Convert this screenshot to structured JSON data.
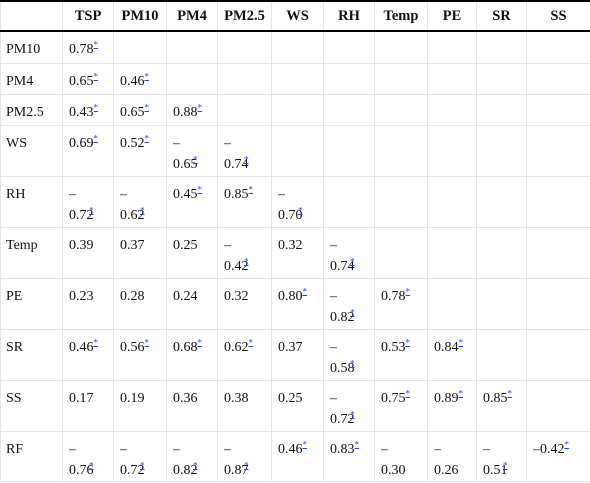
{
  "columns": [
    "",
    "TSP",
    "PM10",
    "PM4",
    "PM2.5",
    "WS",
    "RH",
    "Temp",
    "PE",
    "SR",
    "SS"
  ],
  "rows": [
    {
      "label": "PM10",
      "cells": [
        {
          "v": "0.78",
          "s": true
        },
        null,
        null,
        null,
        null,
        null,
        null,
        null,
        null,
        null
      ]
    },
    {
      "label": "PM4",
      "cells": [
        {
          "v": "0.65",
          "s": true
        },
        {
          "v": "0.46",
          "s": true
        },
        null,
        null,
        null,
        null,
        null,
        null,
        null,
        null
      ]
    },
    {
      "label": "PM2.5",
      "cells": [
        {
          "v": "0.43",
          "s": true
        },
        {
          "v": "0.65",
          "s": true
        },
        {
          "v": "0.88",
          "s": true
        },
        null,
        null,
        null,
        null,
        null,
        null,
        null
      ]
    },
    {
      "label": "WS",
      "cells": [
        {
          "v": "0.69",
          "s": true
        },
        {
          "v": "0.52",
          "s": true
        },
        {
          "v": "–0.65",
          "s": true
        },
        {
          "v": "–0.74",
          "s": true
        },
        null,
        null,
        null,
        null,
        null,
        null
      ]
    },
    {
      "label": "RH",
      "cells": [
        {
          "v": "–0.72",
          "s": true
        },
        {
          "v": "–0.62",
          "s": true
        },
        {
          "v": "0.45",
          "s": true
        },
        {
          "v": "0.85",
          "s": true
        },
        {
          "v": "–0.70",
          "s": true
        },
        null,
        null,
        null,
        null,
        null
      ]
    },
    {
      "label": "Temp",
      "cells": [
        {
          "v": "0.39",
          "s": false
        },
        {
          "v": "0.37",
          "s": false
        },
        {
          "v": "0.25",
          "s": false
        },
        {
          "v": "–0.42",
          "s": true
        },
        {
          "v": "0.32",
          "s": false
        },
        {
          "v": "–0.74",
          "s": true
        },
        null,
        null,
        null,
        null
      ]
    },
    {
      "label": "PE",
      "cells": [
        {
          "v": "0.23",
          "s": false
        },
        {
          "v": "0.28",
          "s": false
        },
        {
          "v": "0.24",
          "s": false
        },
        {
          "v": "0.32",
          "s": false
        },
        {
          "v": "0.80",
          "s": true
        },
        {
          "v": "–0.82",
          "s": true
        },
        {
          "v": "0.78",
          "s": true
        },
        null,
        null,
        null
      ]
    },
    {
      "label": "SR",
      "cells": [
        {
          "v": "0.46",
          "s": true
        },
        {
          "v": "0.56",
          "s": true
        },
        {
          "v": "0.68",
          "s": true
        },
        {
          "v": "0.62",
          "s": true
        },
        {
          "v": "0.37",
          "s": false
        },
        {
          "v": "–0.58",
          "s": true
        },
        {
          "v": "0.53",
          "s": true
        },
        {
          "v": "0.84",
          "s": true
        },
        null,
        null
      ]
    },
    {
      "label": "SS",
      "cells": [
        {
          "v": "0.17",
          "s": false
        },
        {
          "v": "0.19",
          "s": false
        },
        {
          "v": "0.36",
          "s": false
        },
        {
          "v": "0.38",
          "s": false
        },
        {
          "v": "0.25",
          "s": false
        },
        {
          "v": "–0.72",
          "s": true
        },
        {
          "v": "0.75",
          "s": true
        },
        {
          "v": "0.89",
          "s": true
        },
        {
          "v": "0.85",
          "s": true
        },
        null
      ]
    },
    {
      "label": "RF",
      "cells": [
        {
          "v": "–0.76",
          "s": true
        },
        {
          "v": "–0.72",
          "s": true
        },
        {
          "v": "–0.82",
          "s": true
        },
        {
          "v": "–0.87",
          "s": true
        },
        {
          "v": "0.46",
          "s": true
        },
        {
          "v": "0.83",
          "s": true
        },
        {
          "v": "–0.30",
          "s": false
        },
        {
          "v": "–0.26",
          "s": false
        },
        {
          "v": "–0.51",
          "s": true
        },
        {
          "v": "–0.42",
          "s": true
        }
      ]
    }
  ],
  "star_symbol": "*",
  "colors": {
    "star": "#1a44ff",
    "grid": "#e5e5e5",
    "rule": "#000000"
  }
}
